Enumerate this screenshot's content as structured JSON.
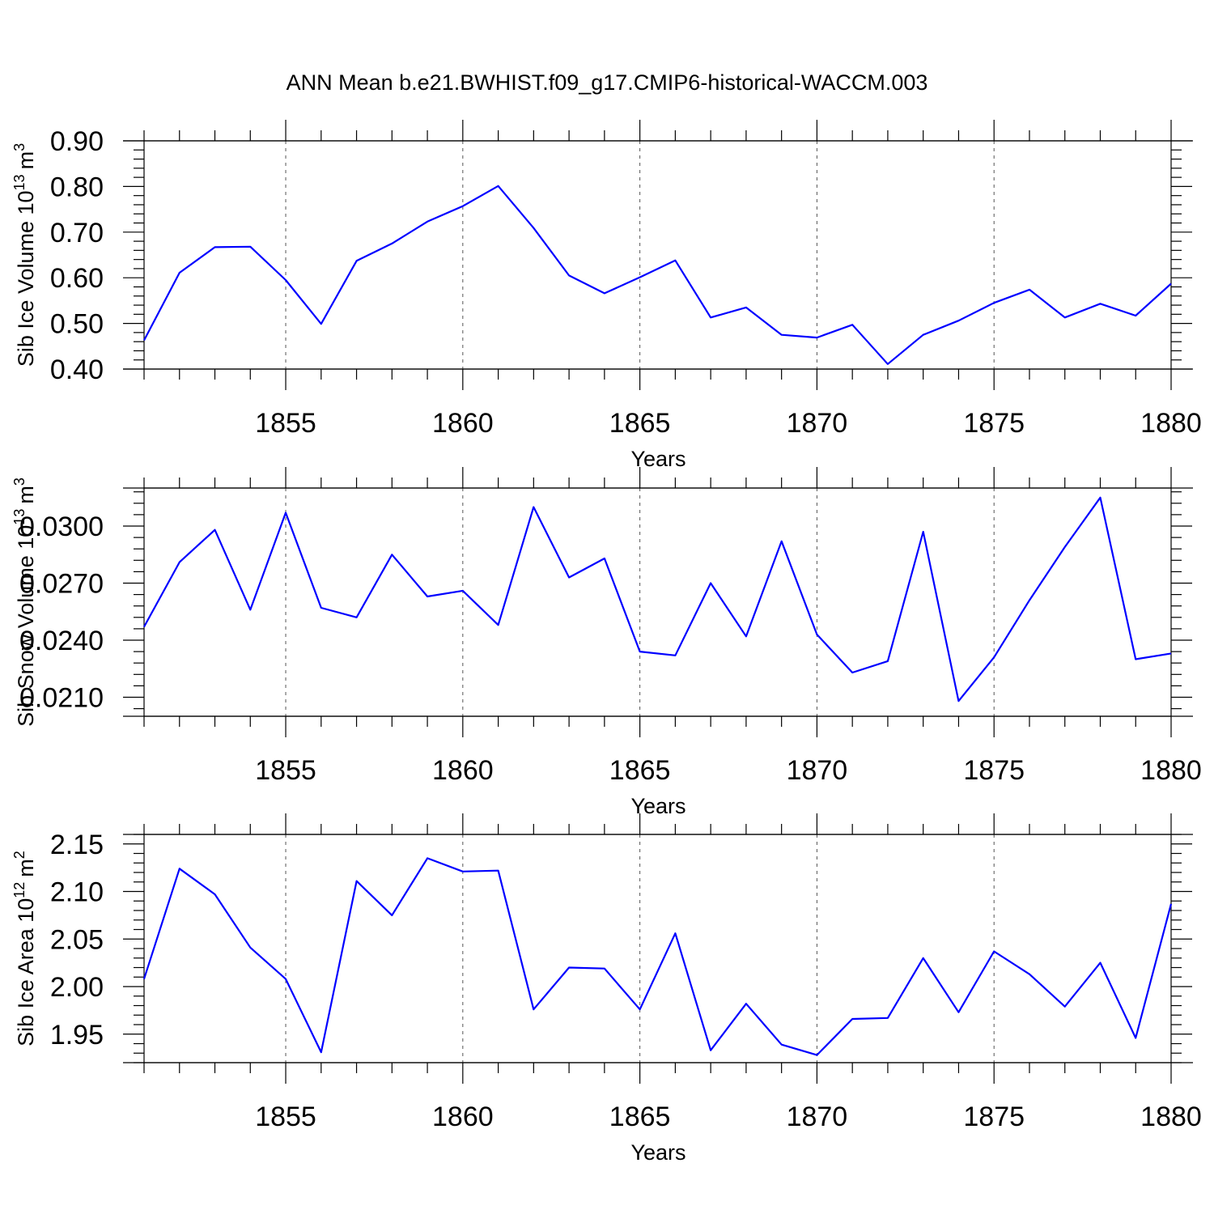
{
  "figure": {
    "title": "ANN Mean b.e21.BWHIST.f09_g17.CMIP6-historical-WACCM.003",
    "line_color": "#0000ff"
  },
  "chart_data": [
    {
      "type": "line",
      "title": "ANN Mean b.e21.BWHIST.f09_g17.CMIP6-historical-WACCM.003",
      "xlabel": "Years",
      "ylabel_main": "Sib Ice Volume 10",
      "ylabel_exp": "13",
      "ylabel_unit": "m",
      "ylabel_unit_exp": "3",
      "xlim": [
        1851,
        1880
      ],
      "ylim": [
        0.4,
        0.9
      ],
      "xticks": [
        1855,
        1860,
        1865,
        1870,
        1875,
        1880
      ],
      "xtick_labels": [
        "1855",
        "1860",
        "1865",
        "1870",
        "1875",
        "1880"
      ],
      "yticks": [
        0.4,
        0.5,
        0.6,
        0.7,
        0.8,
        0.9
      ],
      "ytick_labels": [
        "0.40",
        "0.50",
        "0.60",
        "0.70",
        "0.80",
        "0.90"
      ],
      "grid": "vertical dashed at major x ticks",
      "x": [
        1851,
        1852,
        1853,
        1854,
        1855,
        1856,
        1857,
        1858,
        1859,
        1860,
        1861,
        1862,
        1863,
        1864,
        1865,
        1866,
        1867,
        1868,
        1869,
        1870,
        1871,
        1872,
        1873,
        1874,
        1875,
        1876,
        1877,
        1878,
        1879,
        1880
      ],
      "series": [
        {
          "name": "Sib Ice Volume",
          "values": [
            0.463,
            0.611,
            0.667,
            0.668,
            0.595,
            0.499,
            0.637,
            0.675,
            0.723,
            0.757,
            0.801,
            0.709,
            0.605,
            0.566,
            0.601,
            0.638,
            0.513,
            0.535,
            0.475,
            0.469,
            0.497,
            0.411,
            0.475,
            0.506,
            0.545,
            0.574,
            0.513,
            0.543,
            0.517,
            0.587
          ]
        }
      ]
    },
    {
      "type": "line",
      "xlabel": "Years",
      "ylabel_main": "Sib Snow Volume 10",
      "ylabel_exp": "13",
      "ylabel_unit": "m",
      "ylabel_unit_exp": "3",
      "xlim": [
        1851,
        1880
      ],
      "ylim": [
        0.02,
        0.032
      ],
      "xticks": [
        1855,
        1860,
        1865,
        1870,
        1875,
        1880
      ],
      "xtick_labels": [
        "1855",
        "1860",
        "1865",
        "1870",
        "1875",
        "1880"
      ],
      "yticks": [
        0.021,
        0.024,
        0.027,
        0.03
      ],
      "ytick_labels": [
        "0.0210",
        "0.0240",
        "0.0270",
        "0.0300"
      ],
      "grid": "vertical dashed at major x ticks",
      "x": [
        1851,
        1852,
        1853,
        1854,
        1855,
        1856,
        1857,
        1858,
        1859,
        1860,
        1861,
        1862,
        1863,
        1864,
        1865,
        1866,
        1867,
        1868,
        1869,
        1870,
        1871,
        1872,
        1873,
        1874,
        1875,
        1876,
        1877,
        1878,
        1879,
        1880
      ],
      "series": [
        {
          "name": "Sib Snow Volume",
          "values": [
            0.0247,
            0.0281,
            0.0298,
            0.0256,
            0.0307,
            0.0257,
            0.0252,
            0.0285,
            0.0263,
            0.0266,
            0.0248,
            0.031,
            0.0273,
            0.0283,
            0.0234,
            0.0232,
            0.027,
            0.0242,
            0.0292,
            0.0243,
            0.0223,
            0.0229,
            0.0297,
            0.0208,
            0.0231,
            0.0261,
            0.0289,
            0.0315,
            0.023,
            0.0233
          ]
        }
      ]
    },
    {
      "type": "line",
      "xlabel": "Years",
      "ylabel_main": "Sib Ice Area 10",
      "ylabel_exp": "12",
      "ylabel_unit": "m",
      "ylabel_unit_exp": "2",
      "xlim": [
        1851,
        1880
      ],
      "ylim": [
        1.92,
        2.16
      ],
      "xticks": [
        1855,
        1860,
        1865,
        1870,
        1875,
        1880
      ],
      "xtick_labels": [
        "1855",
        "1860",
        "1865",
        "1870",
        "1875",
        "1880"
      ],
      "yticks": [
        1.95,
        2.0,
        2.05,
        2.1,
        2.15
      ],
      "ytick_labels": [
        "1.95",
        "2.00",
        "2.05",
        "2.10",
        "2.15"
      ],
      "grid": "vertical dashed at major x ticks",
      "x": [
        1851,
        1852,
        1853,
        1854,
        1855,
        1856,
        1857,
        1858,
        1859,
        1860,
        1861,
        1862,
        1863,
        1864,
        1865,
        1866,
        1867,
        1868,
        1869,
        1870,
        1871,
        1872,
        1873,
        1874,
        1875,
        1876,
        1877,
        1878,
        1879,
        1880
      ],
      "series": [
        {
          "name": "Sib Ice Area",
          "values": [
            2.008,
            2.124,
            2.097,
            2.041,
            2.008,
            1.931,
            2.111,
            2.075,
            2.135,
            2.121,
            2.122,
            1.976,
            2.02,
            2.019,
            1.976,
            2.056,
            1.933,
            1.982,
            1.939,
            1.928,
            1.966,
            1.967,
            2.03,
            1.973,
            2.037,
            2.013,
            1.979,
            2.025,
            1.946,
            2.087
          ]
        }
      ]
    }
  ]
}
